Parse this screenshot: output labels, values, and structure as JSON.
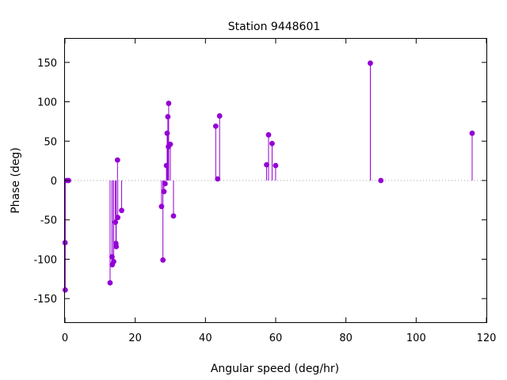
{
  "chart_data": {
    "type": "scatter",
    "title": "Station 9448601",
    "xlabel": "Angular speed (deg/hr)",
    "ylabel": "Phase (deg)",
    "xlim": [
      0,
      120
    ],
    "ylim": [
      -180,
      180
    ],
    "xticks": [
      0,
      20,
      40,
      60,
      80,
      100,
      120
    ],
    "yticks": [
      -150,
      -100,
      -50,
      0,
      50,
      100,
      150
    ],
    "zero_line": true,
    "grid": false,
    "legend": "none",
    "style": "impulses-with-points",
    "series": [
      {
        "color": "#9400d3",
        "points": [
          {
            "x": 0.04,
            "y": -79
          },
          {
            "x": 0.08,
            "y": -139
          },
          {
            "x": 0.49,
            "y": 0
          },
          {
            "x": 1.02,
            "y": 0
          },
          {
            "x": 12.85,
            "y": -130
          },
          {
            "x": 13.4,
            "y": -97
          },
          {
            "x": 13.47,
            "y": -107
          },
          {
            "x": 13.87,
            "y": -103
          },
          {
            "x": 14.36,
            "y": -53
          },
          {
            "x": 14.5,
            "y": -80
          },
          {
            "x": 14.6,
            "y": -84
          },
          {
            "x": 14.96,
            "y": 26
          },
          {
            "x": 15.04,
            "y": -47
          },
          {
            "x": 16.14,
            "y": -38
          },
          {
            "x": 27.5,
            "y": -33
          },
          {
            "x": 27.9,
            "y": -101
          },
          {
            "x": 28.2,
            "y": -14
          },
          {
            "x": 28.51,
            "y": -4
          },
          {
            "x": 28.9,
            "y": 19
          },
          {
            "x": 29.1,
            "y": 60
          },
          {
            "x": 29.3,
            "y": 81
          },
          {
            "x": 29.46,
            "y": 43
          },
          {
            "x": 29.53,
            "y": 98
          },
          {
            "x": 30.0,
            "y": 46
          },
          {
            "x": 30.9,
            "y": -45
          },
          {
            "x": 42.93,
            "y": 69
          },
          {
            "x": 43.48,
            "y": 2
          },
          {
            "x": 44.03,
            "y": 82
          },
          {
            "x": 57.42,
            "y": 20
          },
          {
            "x": 57.97,
            "y": 58
          },
          {
            "x": 58.98,
            "y": 47
          },
          {
            "x": 59.98,
            "y": 19
          },
          {
            "x": 86.95,
            "y": 149
          },
          {
            "x": 89.95,
            "y": 0
          },
          {
            "x": 115.94,
            "y": 60
          }
        ]
      }
    ]
  }
}
